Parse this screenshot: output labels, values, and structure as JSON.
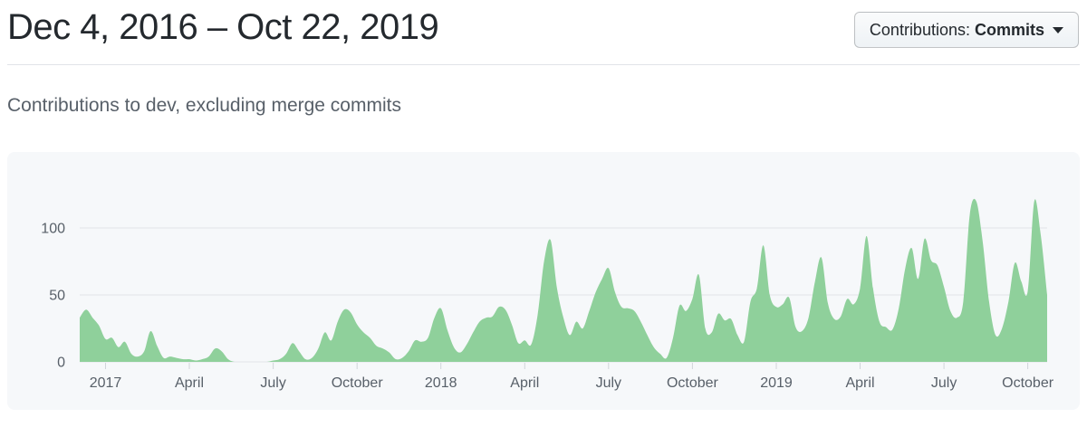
{
  "header": {
    "title": "Dec 4, 2016 – Oct 22, 2019",
    "filter": {
      "label": "Contributions:",
      "value": "Commits"
    }
  },
  "subtitle": "Contributions to dev, excluding merge commits",
  "chart_data": {
    "type": "area",
    "title": "Contributions to dev, excluding merge commits",
    "series_name": "Commits",
    "x_unit": "week",
    "x_start_label": "Dec 4, 2016",
    "x_end_label": "Oct 22, 2019",
    "ylim": [
      0,
      125
    ],
    "yticks": [
      0,
      50,
      100
    ],
    "grid": true,
    "x_tick_weeks": [
      4,
      17,
      30,
      43,
      56,
      69,
      82,
      95,
      108,
      121,
      134,
      147
    ],
    "x_tick_labels": [
      "2017",
      "April",
      "July",
      "October",
      "2018",
      "April",
      "July",
      "October",
      "2019",
      "April",
      "July",
      "October"
    ],
    "values": [
      33,
      39,
      33,
      27,
      17,
      18,
      11,
      15,
      6,
      4,
      8,
      23,
      12,
      3,
      4,
      3,
      2,
      2,
      1,
      2,
      4,
      10,
      8,
      2,
      0,
      0,
      0,
      0,
      0,
      0,
      1,
      2,
      6,
      14,
      8,
      2,
      3,
      10,
      22,
      16,
      30,
      39,
      37,
      28,
      22,
      18,
      12,
      10,
      7,
      2,
      3,
      8,
      16,
      15,
      18,
      33,
      40,
      24,
      11,
      7,
      13,
      22,
      30,
      33,
      34,
      41,
      39,
      28,
      14,
      16,
      13,
      35,
      75,
      91,
      55,
      33,
      20,
      30,
      25,
      38,
      52,
      62,
      70,
      52,
      41,
      40,
      38,
      30,
      20,
      11,
      6,
      3,
      18,
      42,
      38,
      47,
      65,
      25,
      22,
      36,
      31,
      32,
      20,
      15,
      45,
      55,
      87,
      50,
      41,
      43,
      48,
      26,
      23,
      33,
      60,
      78,
      44,
      32,
      34,
      47,
      43,
      55,
      94,
      55,
      30,
      26,
      24,
      40,
      70,
      85,
      62,
      92,
      76,
      72,
      56,
      38,
      33,
      45,
      110,
      120,
      90,
      45,
      20,
      25,
      45,
      74,
      60,
      53,
      120,
      95,
      50
    ],
    "colors": {
      "area": "#8fd09b",
      "grid": "#e1e4e8",
      "tick": "#d1d5da",
      "axis_label": "#586069",
      "panel_bg": "#f6f8fa"
    }
  }
}
